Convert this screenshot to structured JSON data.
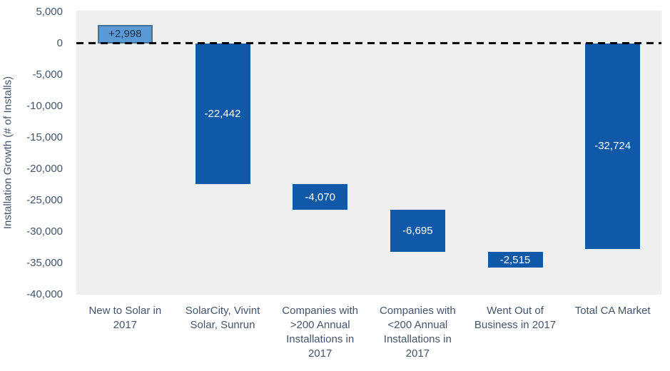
{
  "chart_data": {
    "type": "bar",
    "subtype": "waterfall",
    "title": "",
    "xlabel": "",
    "ylabel": "Installation Growth (# of Installs)",
    "ylim": [
      -40000,
      5000
    ],
    "grid": "off",
    "legend": "none",
    "plot_background": "#EFEFEF",
    "zero_line": {
      "value": 0,
      "style": "dashed",
      "color": "#000000"
    },
    "yticks": [
      {
        "value": 5000,
        "label": "5,000"
      },
      {
        "value": 0,
        "label": "0"
      },
      {
        "value": -5000,
        "label": "-5,000"
      },
      {
        "value": -10000,
        "label": "-10,000"
      },
      {
        "value": -15000,
        "label": "-15,000"
      },
      {
        "value": -20000,
        "label": "-20,000"
      },
      {
        "value": -25000,
        "label": "-25,000"
      },
      {
        "value": -30000,
        "label": "-30,000"
      },
      {
        "value": -35000,
        "label": "-35,000"
      },
      {
        "value": -40000,
        "label": "-40,000"
      }
    ],
    "categories": [
      "New to Solar in\n2017",
      "SolarCity, Vivint\nSolar, Sunrun",
      "Companies with\n>200 Annual\nInstallations in\n2017",
      "Companies with\n<200 Annual\nInstallations in\n2017",
      "Went Out of\nBusiness in 2017",
      "Total CA Market"
    ],
    "bars": [
      {
        "category": "New to Solar in 2017",
        "label": "+2,998",
        "value": 2998,
        "start": 2998,
        "end": 0,
        "role": "gain"
      },
      {
        "category": "SolarCity, Vivint Solar, Sunrun",
        "label": "-22,442",
        "value": -22442,
        "start": 0,
        "end": -22442,
        "role": "loss"
      },
      {
        "category": "Companies with >200 Annual Installations in 2017",
        "label": "-4,070",
        "value": -4070,
        "start": -22442,
        "end": -26512,
        "role": "loss"
      },
      {
        "category": "Companies with <200 Annual Installations in 2017",
        "label": "-6,695",
        "value": -6695,
        "start": -26512,
        "end": -33207,
        "role": "loss"
      },
      {
        "category": "Went Out of Business in 2017",
        "label": "-2,515",
        "value": -2515,
        "start": -33207,
        "end": -35722,
        "role": "loss"
      },
      {
        "category": "Total CA Market",
        "label": "-32,724",
        "value": -32724,
        "start": 0,
        "end": -32724,
        "role": "total"
      }
    ],
    "colors": {
      "gain_fill": "#5B9BD5",
      "gain_border": "#41719C",
      "gain_label": "#1F2A44",
      "loss_fill": "#1058A8",
      "loss_label": "#FFFFFF",
      "axis_tick_label": "#44546A",
      "axis_title": "#44546A",
      "category_label": "#44546A"
    }
  }
}
